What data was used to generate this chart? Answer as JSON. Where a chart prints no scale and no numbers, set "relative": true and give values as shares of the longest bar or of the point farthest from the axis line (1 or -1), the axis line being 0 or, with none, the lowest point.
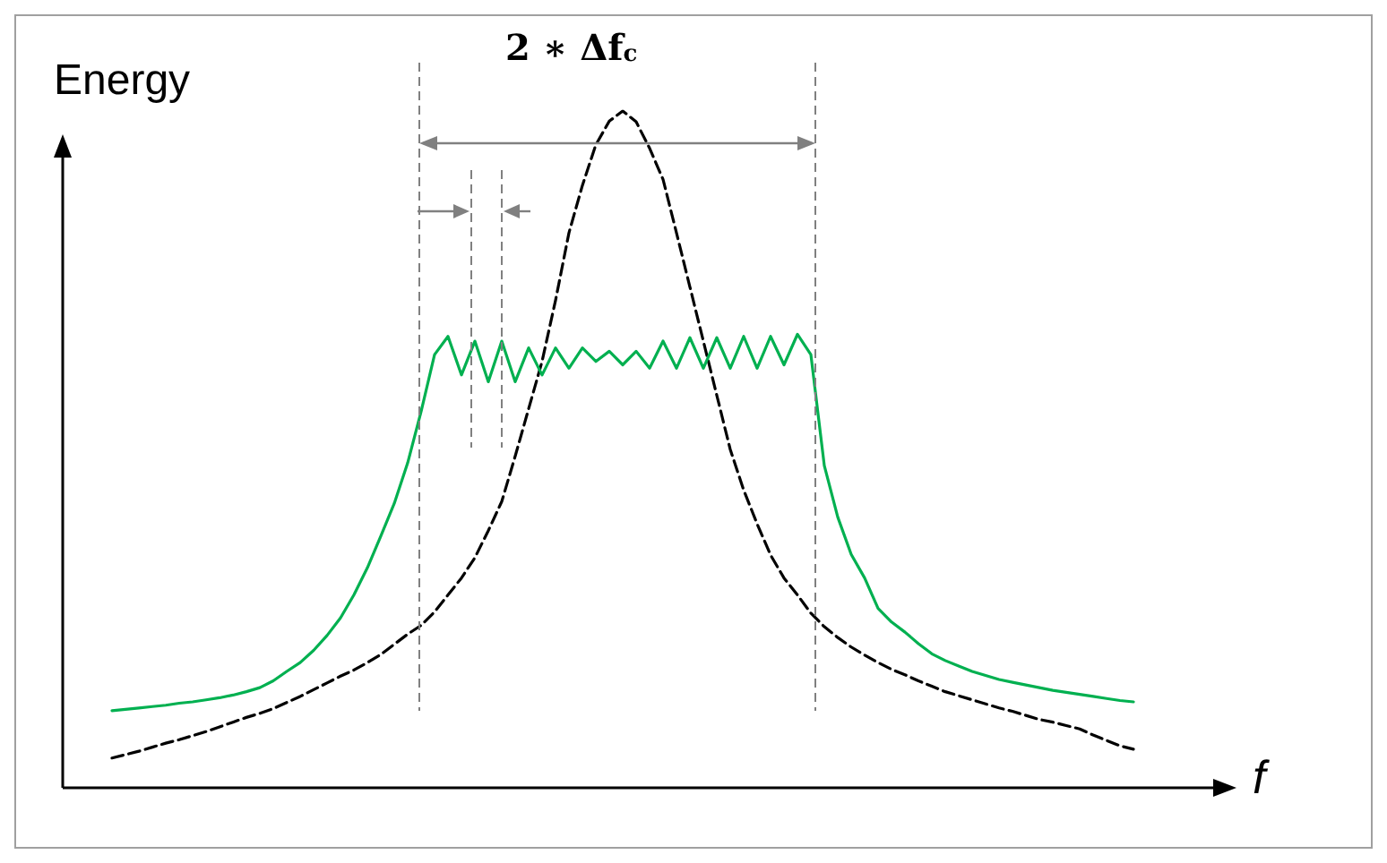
{
  "chart_data": {
    "type": "line",
    "relative": true,
    "xlabel": "f",
    "ylabel": "Energy",
    "annotations": [
      "2 ∗ Δf$_{c}$"
    ],
    "marker": "none",
    "categories": [
      null,
      null,
      null,
      null,
      null,
      null,
      null,
      null,
      null,
      null,
      null,
      null,
      null,
      null,
      null,
      null,
      null,
      null,
      null,
      null,
      null,
      null,
      null,
      null,
      null,
      null,
      null,
      null,
      null,
      null,
      null,
      null,
      null,
      null,
      null,
      null,
      null,
      null,
      null,
      null,
      null,
      null,
      null,
      null,
      null,
      null,
      null,
      null,
      null,
      null,
      null,
      null,
      null,
      null,
      null,
      null,
      null,
      null,
      null,
      null,
      null,
      null,
      null,
      null,
      null,
      null,
      null,
      null,
      null,
      null,
      null,
      null,
      null,
      null,
      null,
      null,
      null
    ],
    "series": [
      {
        "color": "#000000",
        "line_style": "dashed",
        "values": [
          0.044,
          0.049,
          0.054,
          0.06,
          0.066,
          0.071,
          0.077,
          0.083,
          0.09,
          0.097,
          0.104,
          0.11,
          0.117,
          0.126,
          0.135,
          0.145,
          0.155,
          0.165,
          0.174,
          0.185,
          0.197,
          0.212,
          0.227,
          0.24,
          0.26,
          0.285,
          0.31,
          0.34,
          0.38,
          0.423,
          0.49,
          0.56,
          0.63,
          0.72,
          0.82,
          0.89,
          0.95,
          0.985,
          1,
          0.984,
          0.945,
          0.899,
          0.82,
          0.74,
          0.66,
          0.58,
          0.5,
          0.44,
          0.39,
          0.344,
          0.31,
          0.285,
          0.258,
          0.238,
          0.222,
          0.208,
          0.196,
          0.185,
          0.175,
          0.167,
          0.158,
          0.15,
          0.142,
          0.136,
          0.13,
          0.124,
          0.118,
          0.113,
          0.107,
          0.101,
          0.097,
          0.092,
          0.087,
          0.078,
          0.07,
          0.062,
          0.057
        ]
      },
      {
        "color": "#00b050",
        "line_style": "solid",
        "values": [
          0.114,
          0.116,
          0.118,
          0.12,
          0.122,
          0.125,
          0.127,
          0.13,
          0.133,
          0.137,
          0.142,
          0.148,
          0.158,
          0.172,
          0.185,
          0.203,
          0.225,
          0.251,
          0.285,
          0.325,
          0.372,
          0.42,
          0.48,
          0.556,
          0.64,
          0.667,
          0.61,
          0.66,
          0.6,
          0.66,
          0.6,
          0.65,
          0.61,
          0.65,
          0.62,
          0.65,
          0.63,
          0.645,
          0.625,
          0.645,
          0.62,
          0.66,
          0.62,
          0.665,
          0.62,
          0.665,
          0.62,
          0.667,
          0.62,
          0.667,
          0.625,
          0.67,
          0.64,
          0.476,
          0.4,
          0.345,
          0.31,
          0.265,
          0.245,
          0.23,
          0.213,
          0.198,
          0.188,
          0.18,
          0.172,
          0.166,
          0.16,
          0.156,
          0.152,
          0.148,
          0.144,
          0.141,
          0.138,
          0.135,
          0.132,
          0.129,
          0.127
        ]
      }
    ]
  }
}
